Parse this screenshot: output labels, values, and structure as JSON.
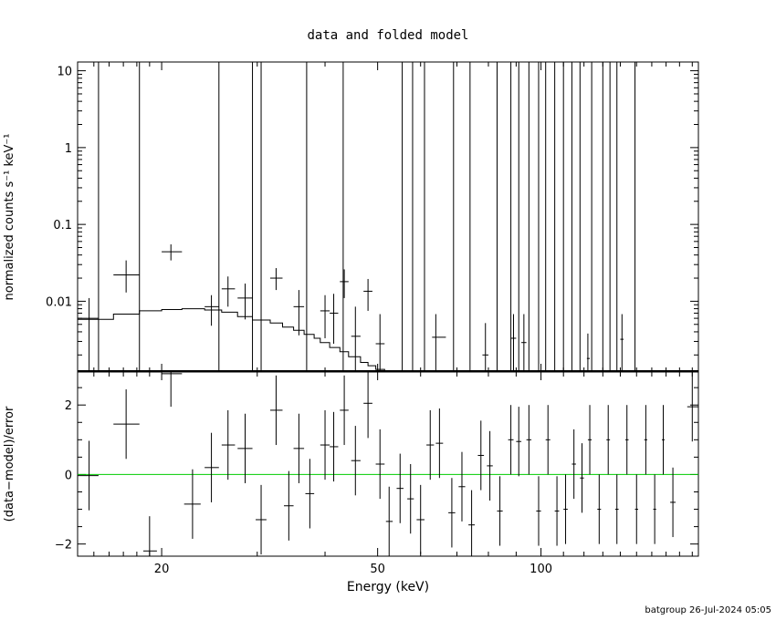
{
  "title": "data and folded model",
  "footer": "batgroup 26-Jul-2024 05:05",
  "colors": {
    "axis": "#000000",
    "data": "#000000",
    "model": "#000000",
    "zero_line": "#00cc00"
  },
  "chart_data": [
    {
      "type": "scatter",
      "panel": "top",
      "ylabel": "normalized counts s⁻¹ keV⁻¹",
      "yscale": "log",
      "xscale": "log",
      "xlim": [
        14,
        195
      ],
      "ylim": [
        0.0012,
        13
      ],
      "ytick_labels": [
        "0.01",
        "0.1",
        "1",
        "10"
      ],
      "ytick_values": [
        0.01,
        0.1,
        1,
        10
      ],
      "series": [
        {
          "kind": "data-with-errors",
          "points": [
            {
              "x": 14.7,
              "y": 0.006,
              "xlo": 14.0,
              "xhi": 15.3,
              "ylo": 0.0012,
              "yhi": 0.011
            },
            {
              "x": 17.2,
              "y": 0.022,
              "xlo": 16.3,
              "xhi": 18.2,
              "ylo": 0.013,
              "yhi": 0.034
            },
            {
              "x": 20.8,
              "y": 0.044,
              "xlo": 20.0,
              "xhi": 21.8,
              "ylo": 0.034,
              "yhi": 0.055
            },
            {
              "x": 24.7,
              "y": 0.0085,
              "xlo": 24.0,
              "xhi": 25.5,
              "ylo": 0.0048,
              "yhi": 0.012
            },
            {
              "x": 26.5,
              "y": 0.0145,
              "xlo": 25.8,
              "xhi": 27.3,
              "ylo": 0.0085,
              "yhi": 0.021
            },
            {
              "x": 28.5,
              "y": 0.011,
              "xlo": 27.6,
              "xhi": 29.4,
              "ylo": 0.0058,
              "yhi": 0.017
            },
            {
              "x": 32.5,
              "y": 0.02,
              "xlo": 31.7,
              "xhi": 33.4,
              "ylo": 0.014,
              "yhi": 0.027
            },
            {
              "x": 35.8,
              "y": 0.0085,
              "xlo": 35.0,
              "xhi": 36.6,
              "ylo": 0.0036,
              "yhi": 0.014
            },
            {
              "x": 40.0,
              "y": 0.0075,
              "xlo": 39.2,
              "xhi": 40.8,
              "ylo": 0.0033,
              "yhi": 0.012
            },
            {
              "x": 41.5,
              "y": 0.007,
              "xlo": 40.8,
              "xhi": 42.3,
              "ylo": 0.0028,
              "yhi": 0.0125
            },
            {
              "x": 43.4,
              "y": 0.018,
              "xlo": 42.6,
              "xhi": 44.2,
              "ylo": 0.011,
              "yhi": 0.026
            },
            {
              "x": 45.5,
              "y": 0.0035,
              "xlo": 44.7,
              "xhi": 46.5,
              "ylo": 0.0012,
              "yhi": 0.0085
            },
            {
              "x": 48.0,
              "y": 0.0135,
              "xlo": 47.1,
              "xhi": 48.9,
              "ylo": 0.0075,
              "yhi": 0.0195
            },
            {
              "x": 50.5,
              "y": 0.0028,
              "xlo": 49.6,
              "xhi": 51.5,
              "ylo": 0.0012,
              "yhi": 0.0068
            },
            {
              "x": 64.0,
              "y": 0.0034,
              "xlo": 63.0,
              "xhi": 66.8,
              "ylo": 0.0012,
              "yhi": 0.0068
            },
            {
              "x": 79.0,
              "y": 0.002,
              "xlo": 78.0,
              "xhi": 80.0,
              "ylo": 0.0012,
              "yhi": 0.0052
            },
            {
              "x": 89.0,
              "y": 0.0033,
              "xlo": 88.0,
              "xhi": 90.0,
              "ylo": 0.0012,
              "yhi": 0.0068
            },
            {
              "x": 93.0,
              "y": 0.0029,
              "xlo": 92.0,
              "xhi": 94.0,
              "ylo": 0.0012,
              "yhi": 0.0068
            },
            {
              "x": 122.0,
              "y": 0.0018,
              "xlo": 121.5,
              "xhi": 123.0,
              "ylo": 0.0012,
              "yhi": 0.0038
            },
            {
              "x": 141.0,
              "y": 0.0032,
              "xlo": 140.0,
              "xhi": 142.0,
              "ylo": 0.0012,
              "yhi": 0.0068
            }
          ],
          "upper_limits": [
            15.3,
            18.2,
            25.5,
            29.4,
            30.5,
            37.0,
            43.2,
            55.5,
            58.0,
            61.0,
            69.0,
            74.0,
            83.0,
            88.0,
            91.0,
            95.0,
            99.0,
            102.0,
            106.0,
            110.0,
            114.0,
            118.0,
            124.0,
            130.0,
            134.0,
            138.0,
            149.0
          ]
        },
        {
          "kind": "folded-model-step",
          "bin_edges": [
            14.0,
            16.3,
            18.2,
            20.0,
            21.8,
            24.0,
            25.8,
            27.6,
            29.4,
            31.7,
            33.4,
            35.0,
            36.6,
            38.2,
            39.2,
            40.8,
            42.6,
            44.2,
            46.5,
            48.0,
            49.6,
            51.5,
            53.5,
            56.0
          ],
          "values": [
            0.0058,
            0.0068,
            0.0075,
            0.0078,
            0.008,
            0.0077,
            0.0072,
            0.0063,
            0.0057,
            0.0052,
            0.0046,
            0.0042,
            0.0037,
            0.0033,
            0.0029,
            0.0025,
            0.0022,
            0.0019,
            0.0016,
            0.00145,
            0.0013,
            0.00122,
            0.0012
          ]
        }
      ]
    },
    {
      "type": "scatter",
      "panel": "bottom",
      "xlabel": "Energy (keV)",
      "ylabel": "(data−model)/error",
      "xscale": "log",
      "xlim": [
        14,
        195
      ],
      "ylim": [
        -2.35,
        2.95
      ],
      "ytick_labels": [
        "−2",
        "0",
        "2"
      ],
      "ytick_values": [
        -2,
        0,
        2
      ],
      "xtick_labels": [
        "20",
        "50",
        "100"
      ],
      "xtick_values": [
        20,
        50,
        100
      ],
      "zero_line": 0,
      "series": [
        {
          "kind": "residuals",
          "points": [
            {
              "x": 14.7,
              "y": -0.03,
              "xlo": 14.0,
              "xhi": 15.3,
              "err": 1.0
            },
            {
              "x": 17.2,
              "y": 1.45,
              "xlo": 16.3,
              "xhi": 18.2,
              "err": 1.0
            },
            {
              "x": 19.0,
              "y": -2.2,
              "xlo": 18.5,
              "xhi": 19.6,
              "err": 1.0
            },
            {
              "x": 20.8,
              "y": 2.9,
              "xlo": 20.0,
              "xhi": 21.8,
              "err": 0.95
            },
            {
              "x": 22.8,
              "y": -0.85,
              "xlo": 22.0,
              "xhi": 23.6,
              "err": 1.0
            },
            {
              "x": 24.7,
              "y": 0.2,
              "xlo": 24.0,
              "xhi": 25.5,
              "err": 1.0
            },
            {
              "x": 26.5,
              "y": 0.85,
              "xlo": 25.8,
              "xhi": 27.3,
              "err": 1.0
            },
            {
              "x": 28.5,
              "y": 0.75,
              "xlo": 27.6,
              "xhi": 29.4,
              "err": 1.0
            },
            {
              "x": 30.5,
              "y": -1.3,
              "xlo": 29.8,
              "xhi": 31.2,
              "err": 1.0
            },
            {
              "x": 32.5,
              "y": 1.85,
              "xlo": 31.7,
              "xhi": 33.4,
              "err": 1.0
            },
            {
              "x": 34.3,
              "y": -0.9,
              "xlo": 33.6,
              "xhi": 35.0,
              "err": 1.0
            },
            {
              "x": 35.8,
              "y": 0.75,
              "xlo": 35.0,
              "xhi": 36.6,
              "err": 1.0
            },
            {
              "x": 37.5,
              "y": -0.55,
              "xlo": 36.8,
              "xhi": 38.2,
              "err": 1.0
            },
            {
              "x": 40.0,
              "y": 0.85,
              "xlo": 39.2,
              "xhi": 40.8,
              "err": 1.0
            },
            {
              "x": 41.5,
              "y": 0.8,
              "xlo": 40.8,
              "xhi": 42.3,
              "err": 1.0
            },
            {
              "x": 43.4,
              "y": 1.85,
              "xlo": 42.6,
              "xhi": 44.2,
              "err": 1.0
            },
            {
              "x": 45.5,
              "y": 0.4,
              "xlo": 44.7,
              "xhi": 46.5,
              "err": 1.0
            },
            {
              "x": 48.0,
              "y": 2.05,
              "xlo": 47.1,
              "xhi": 48.9,
              "err": 1.0
            },
            {
              "x": 50.5,
              "y": 0.3,
              "xlo": 49.6,
              "xhi": 51.5,
              "err": 1.0
            },
            {
              "x": 52.5,
              "y": -1.35,
              "xlo": 51.8,
              "xhi": 53.3,
              "err": 1.0
            },
            {
              "x": 55.0,
              "y": -0.4,
              "xlo": 54.2,
              "xhi": 55.8,
              "err": 1.0
            },
            {
              "x": 57.5,
              "y": -0.7,
              "xlo": 56.7,
              "xhi": 58.3,
              "err": 1.0
            },
            {
              "x": 60.0,
              "y": -1.3,
              "xlo": 59.0,
              "xhi": 61.0,
              "err": 1.0
            },
            {
              "x": 62.5,
              "y": 0.85,
              "xlo": 61.5,
              "xhi": 63.5,
              "err": 1.0
            },
            {
              "x": 65.0,
              "y": 0.9,
              "xlo": 64.0,
              "xhi": 66.0,
              "err": 1.0
            },
            {
              "x": 68.5,
              "y": -1.1,
              "xlo": 67.5,
              "xhi": 69.5,
              "err": 1.0
            },
            {
              "x": 71.5,
              "y": -0.35,
              "xlo": 70.5,
              "xhi": 72.5,
              "err": 1.0
            },
            {
              "x": 74.5,
              "y": -1.45,
              "xlo": 73.5,
              "xhi": 75.5,
              "err": 1.0
            },
            {
              "x": 77.5,
              "y": 0.55,
              "xlo": 76.5,
              "xhi": 78.5,
              "err": 1.0
            },
            {
              "x": 80.5,
              "y": 0.25,
              "xlo": 79.5,
              "xhi": 81.5,
              "err": 1.0
            },
            {
              "x": 84.0,
              "y": -1.05,
              "xlo": 83.0,
              "xhi": 85.0,
              "err": 1.0
            },
            {
              "x": 88.0,
              "y": 1.0,
              "xlo": 87.0,
              "xhi": 89.0,
              "err": 1.0
            },
            {
              "x": 91.0,
              "y": 0.95,
              "xlo": 90.0,
              "xhi": 92.0,
              "err": 1.0
            },
            {
              "x": 95.0,
              "y": 1.0,
              "xlo": 94.0,
              "xhi": 96.0,
              "err": 1.0
            },
            {
              "x": 99.0,
              "y": -1.05,
              "xlo": 98.0,
              "xhi": 100.0,
              "err": 1.0
            },
            {
              "x": 103.0,
              "y": 1.0,
              "xlo": 102.0,
              "xhi": 104.0,
              "err": 1.0
            },
            {
              "x": 107.0,
              "y": -1.05,
              "xlo": 106.0,
              "xhi": 108.0,
              "err": 1.0
            },
            {
              "x": 111.0,
              "y": -1.0,
              "xlo": 110.0,
              "xhi": 112.0,
              "err": 1.0
            },
            {
              "x": 115.0,
              "y": 0.3,
              "xlo": 114.0,
              "xhi": 116.0,
              "err": 1.0
            },
            {
              "x": 119.0,
              "y": -0.1,
              "xlo": 118.0,
              "xhi": 120.0,
              "err": 1.0
            },
            {
              "x": 123.0,
              "y": 1.0,
              "xlo": 122.0,
              "xhi": 124.0,
              "err": 1.0
            },
            {
              "x": 128.0,
              "y": -1.0,
              "xlo": 127.0,
              "xhi": 129.0,
              "err": 1.0
            },
            {
              "x": 133.0,
              "y": 1.0,
              "xlo": 132.0,
              "xhi": 134.0,
              "err": 1.0
            },
            {
              "x": 138.0,
              "y": -1.0,
              "xlo": 137.0,
              "xhi": 139.0,
              "err": 1.0
            },
            {
              "x": 144.0,
              "y": 1.0,
              "xlo": 143.0,
              "xhi": 145.0,
              "err": 1.0
            },
            {
              "x": 150.0,
              "y": -1.0,
              "xlo": 149.0,
              "xhi": 151.0,
              "err": 1.0
            },
            {
              "x": 156.0,
              "y": 1.0,
              "xlo": 155.0,
              "xhi": 157.0,
              "err": 1.0
            },
            {
              "x": 162.0,
              "y": -1.0,
              "xlo": 161.0,
              "xhi": 163.0,
              "err": 1.0
            },
            {
              "x": 168.0,
              "y": 1.0,
              "xlo": 167.0,
              "xhi": 169.0,
              "err": 1.0
            },
            {
              "x": 175.0,
              "y": -0.8,
              "xlo": 173.0,
              "xhi": 177.0,
              "err": 1.0
            },
            {
              "x": 190.0,
              "y": 1.95,
              "xlo": 186.0,
              "xhi": 195.0,
              "err": 1.0
            }
          ]
        }
      ]
    }
  ]
}
